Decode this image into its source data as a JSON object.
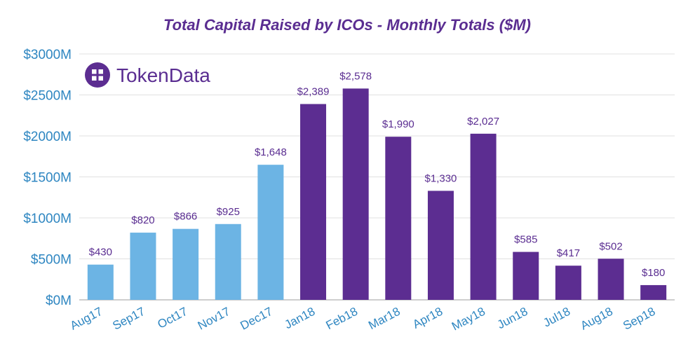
{
  "chart_data": {
    "type": "bar",
    "title": "Total Capital Raised by ICOs - Monthly Totals ($M)",
    "xlabel": "",
    "ylabel": "",
    "ylim": [
      0,
      3000
    ],
    "yticks": [
      {
        "value": 0,
        "label": "$0M"
      },
      {
        "value": 500,
        "label": "$500M"
      },
      {
        "value": 1000,
        "label": "$1000M"
      },
      {
        "value": 1500,
        "label": "$1500M"
      },
      {
        "value": 2000,
        "label": "$2000M"
      },
      {
        "value": 2500,
        "label": "$2500M"
      },
      {
        "value": 3000,
        "label": "$3000M"
      }
    ],
    "grid": true,
    "categories": [
      "Aug17",
      "Sep17",
      "Oct17",
      "Nov17",
      "Dec17",
      "Jan18",
      "Feb18",
      "Mar18",
      "Apr18",
      "May18",
      "Jun18",
      "Jul18",
      "Aug18",
      "Sep18"
    ],
    "values": [
      430,
      820,
      866,
      925,
      1648,
      2389,
      2578,
      1990,
      1330,
      2027,
      585,
      417,
      502,
      180
    ],
    "data_labels": [
      "$430",
      "$820",
      "$866",
      "$925",
      "$1,648",
      "$2,389",
      "$2,578",
      "$1,990",
      "$1,330",
      "$2,027",
      "$585",
      "$417",
      "$502",
      "$180"
    ],
    "bar_colors": [
      "#6cb4e4",
      "#6cb4e4",
      "#6cb4e4",
      "#6cb4e4",
      "#6cb4e4",
      "#5c2d91",
      "#5c2d91",
      "#5c2d91",
      "#5c2d91",
      "#5c2d91",
      "#5c2d91",
      "#5c2d91",
      "#5c2d91",
      "#5c2d91"
    ],
    "colors": {
      "title": "#5a2d91",
      "axis_text": "#2e86c1",
      "data_label": "#5a2d91",
      "gridline": "#e0e0e0"
    }
  },
  "logo": {
    "text": "TokenData",
    "icon": "tokendata-logo-icon"
  }
}
